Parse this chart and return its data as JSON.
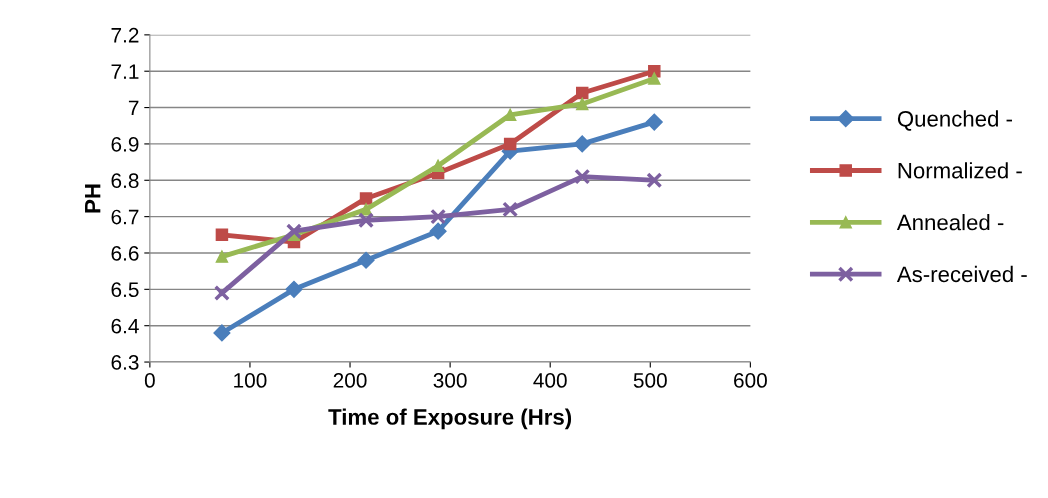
{
  "chart_data": {
    "type": "line",
    "xlabel": "Time of Exposure (Hrs)",
    "ylabel": "PH",
    "xlim": [
      0,
      600
    ],
    "xticks": [
      0,
      100,
      200,
      300,
      400,
      500,
      600
    ],
    "ylim": [
      6.3,
      7.2
    ],
    "yticks": [
      {
        "value": 6.3,
        "label": "6.3"
      },
      {
        "value": 6.4,
        "label": "6.4"
      },
      {
        "value": 6.5,
        "label": "6.5"
      },
      {
        "value": 6.6,
        "label": "6.6"
      },
      {
        "value": 6.7,
        "label": "6.7"
      },
      {
        "value": 6.8,
        "label": "6.8"
      },
      {
        "value": 6.9,
        "label": "6.9"
      },
      {
        "value": 7.0,
        "label": "7"
      },
      {
        "value": 7.1,
        "label": "7.1"
      },
      {
        "value": 7.2,
        "label": "7.2"
      }
    ],
    "x": [
      72,
      144,
      216,
      288,
      360,
      432,
      504
    ],
    "grid": "y",
    "legend": "right",
    "series": [
      {
        "name": "Quenched -",
        "color": "#4a7ebb",
        "marker": "diamond",
        "values": [
          6.38,
          6.5,
          6.58,
          6.66,
          6.88,
          6.9,
          6.96
        ]
      },
      {
        "name": "Normalized -",
        "color": "#be4b48",
        "marker": "square",
        "values": [
          6.65,
          6.63,
          6.75,
          6.82,
          6.9,
          7.04,
          7.1
        ]
      },
      {
        "name": "Annealed -",
        "color": "#98b954",
        "marker": "triangle",
        "values": [
          6.59,
          6.65,
          6.72,
          6.84,
          6.98,
          7.01,
          7.08
        ]
      },
      {
        "name": "As-received -",
        "color": "#7d60a0",
        "marker": "cross",
        "values": [
          6.49,
          6.66,
          6.69,
          6.7,
          6.72,
          6.81,
          6.8
        ]
      }
    ]
  }
}
